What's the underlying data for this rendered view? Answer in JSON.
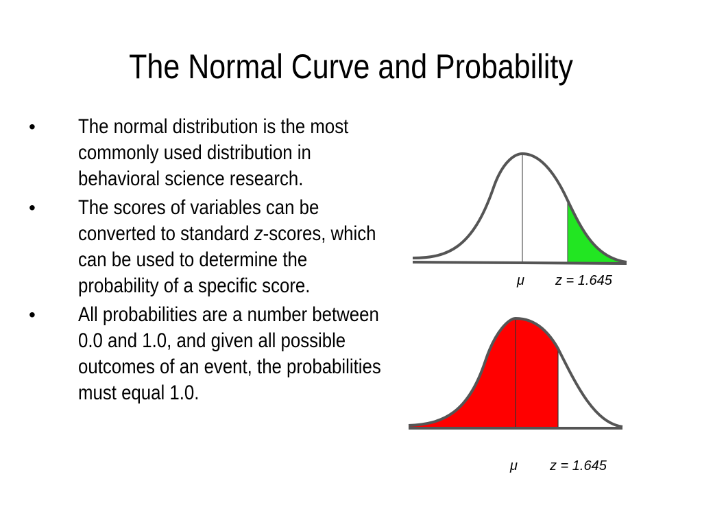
{
  "title": "The Normal Curve and Probability",
  "bullet_symbol": "•",
  "bullets": [
    {
      "text": "The normal distribution is the most commonly used distribution in behavioral science research."
    },
    {
      "text_before": "The scores of variables can be converted to standard ",
      "italic": "z",
      "text_after": "-scores, which can be used to determine the probability of a specific score."
    },
    {
      "text": "All probabilities are a number between 0.0 and 1.0, and given all possible outcomes of an event, the probabilities must equal 1.0."
    }
  ],
  "figures": [
    {
      "mean_label": "μ",
      "z_label": "z = 1.645",
      "z_value": 1.645,
      "shaded_region": "right tail (z > 1.645)",
      "shade_color": "#22e622"
    },
    {
      "mean_label": "μ",
      "z_label": "z = 1.645",
      "z_value": 1.645,
      "shaded_region": "left of z (z < 1.645)",
      "shade_color": "#ff0000"
    }
  ],
  "colors": {
    "curve": "#555555",
    "text": "#000000",
    "background": "#ffffff"
  }
}
